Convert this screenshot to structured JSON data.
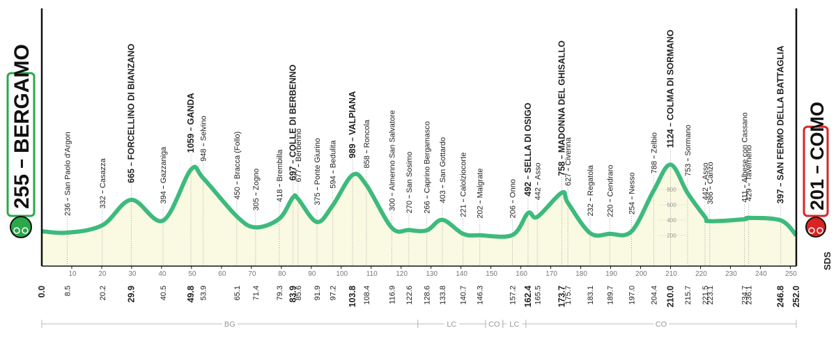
{
  "chart_data": {
    "type": "area",
    "x": [
      {
        "value": 0,
        "label": "0.0"
      },
      8.5,
      20.2,
      29.9,
      40.5,
      49.8,
      53.9,
      65.1,
      71.4,
      79.3,
      83.9,
      85.6,
      91.9,
      97.2,
      103.8,
      108.4,
      116.9,
      122.6,
      128.6,
      133.8,
      140.7,
      146.3,
      157.2,
      162.4,
      165.5,
      173.7,
      175.7,
      183.1,
      189.7,
      {
        "value": 197,
        "label": "197.0"
      },
      204.4,
      {
        "value": 210,
        "label": "210.0"
      },
      215.7,
      221.5,
      223.1,
      234.7,
      236.1,
      246.8,
      {
        "value": 252,
        "label": "252.0"
      }
    ],
    "values": [
      255,
      236,
      332,
      665,
      394,
      1059,
      948,
      450,
      305,
      418,
      697,
      677,
      375,
      594,
      989,
      858,
      300,
      270,
      266,
      403,
      221,
      202,
      206,
      492,
      442,
      758,
      627,
      232,
      220,
      254,
      788,
      1124,
      753,
      442,
      386,
      411,
      429,
      397,
      201
    ],
    "names": [
      "BERGAMO",
      "San Paolo d'Argon",
      "Casazza",
      "FORCELLINO DI BIANZANO",
      "Gazzaniga",
      "GANDA",
      "Selvino",
      "Bracca (Follo)",
      "Zogno",
      "Brembilla",
      "COLLE DI BERBENNO",
      "Berbenno",
      "Ponte Giurino",
      "Bedulita",
      "VALPIANA",
      "Roncola",
      "Almenno San Salvatore",
      "San Sosimo",
      "Caprino Bergamasco",
      "San Gottardo",
      "Calolziocorte",
      "Malgrate",
      "Onno",
      "SELLA DI OSIGO",
      "Asso",
      "MADONNA DEL GHISALLO",
      "Civenna",
      "Regatola",
      "Cendraro",
      "Nesso",
      "Zelbio",
      "COLMA DI SORMANO",
      "Sormano",
      "Asso",
      "Canzo",
      "Albese con Cassano",
      "Tavernerio",
      "SAN FERMO DELLA BATTAGLIA",
      "COMO"
    ],
    "climb": [
      true,
      false,
      false,
      true,
      false,
      true,
      false,
      false,
      false,
      false,
      true,
      false,
      false,
      false,
      true,
      false,
      false,
      false,
      false,
      false,
      false,
      false,
      false,
      true,
      false,
      true,
      false,
      false,
      false,
      false,
      false,
      true,
      false,
      false,
      false,
      false,
      false,
      true,
      true
    ],
    "color": "#3dba7c",
    "fill": "#fafae3",
    "start_color": "#2aa84a",
    "finish_color": "#d92424",
    "xlim": [
      0,
      252
    ],
    "xticks": [
      10,
      20,
      30,
      40,
      50,
      60,
      70,
      80,
      90,
      100,
      110,
      120,
      130,
      140,
      150,
      160,
      170,
      180,
      190,
      200,
      210,
      220,
      230,
      240,
      250
    ],
    "ylim": [
      0,
      1400
    ],
    "yticks": [
      200,
      400,
      600,
      800
    ],
    "regions": [
      {
        "name": "BG",
        "range": [
          0,
          125.6
        ]
      },
      {
        "name": "LC",
        "range": [
          125.6,
          148.2
        ]
      },
      {
        "name": "CO",
        "range": [
          148.2,
          154
        ]
      },
      {
        "name": "LC",
        "range": [
          154,
          161.7
        ]
      },
      {
        "name": "CO",
        "range": [
          161.7,
          252
        ]
      }
    ],
    "logo": "SDS"
  }
}
